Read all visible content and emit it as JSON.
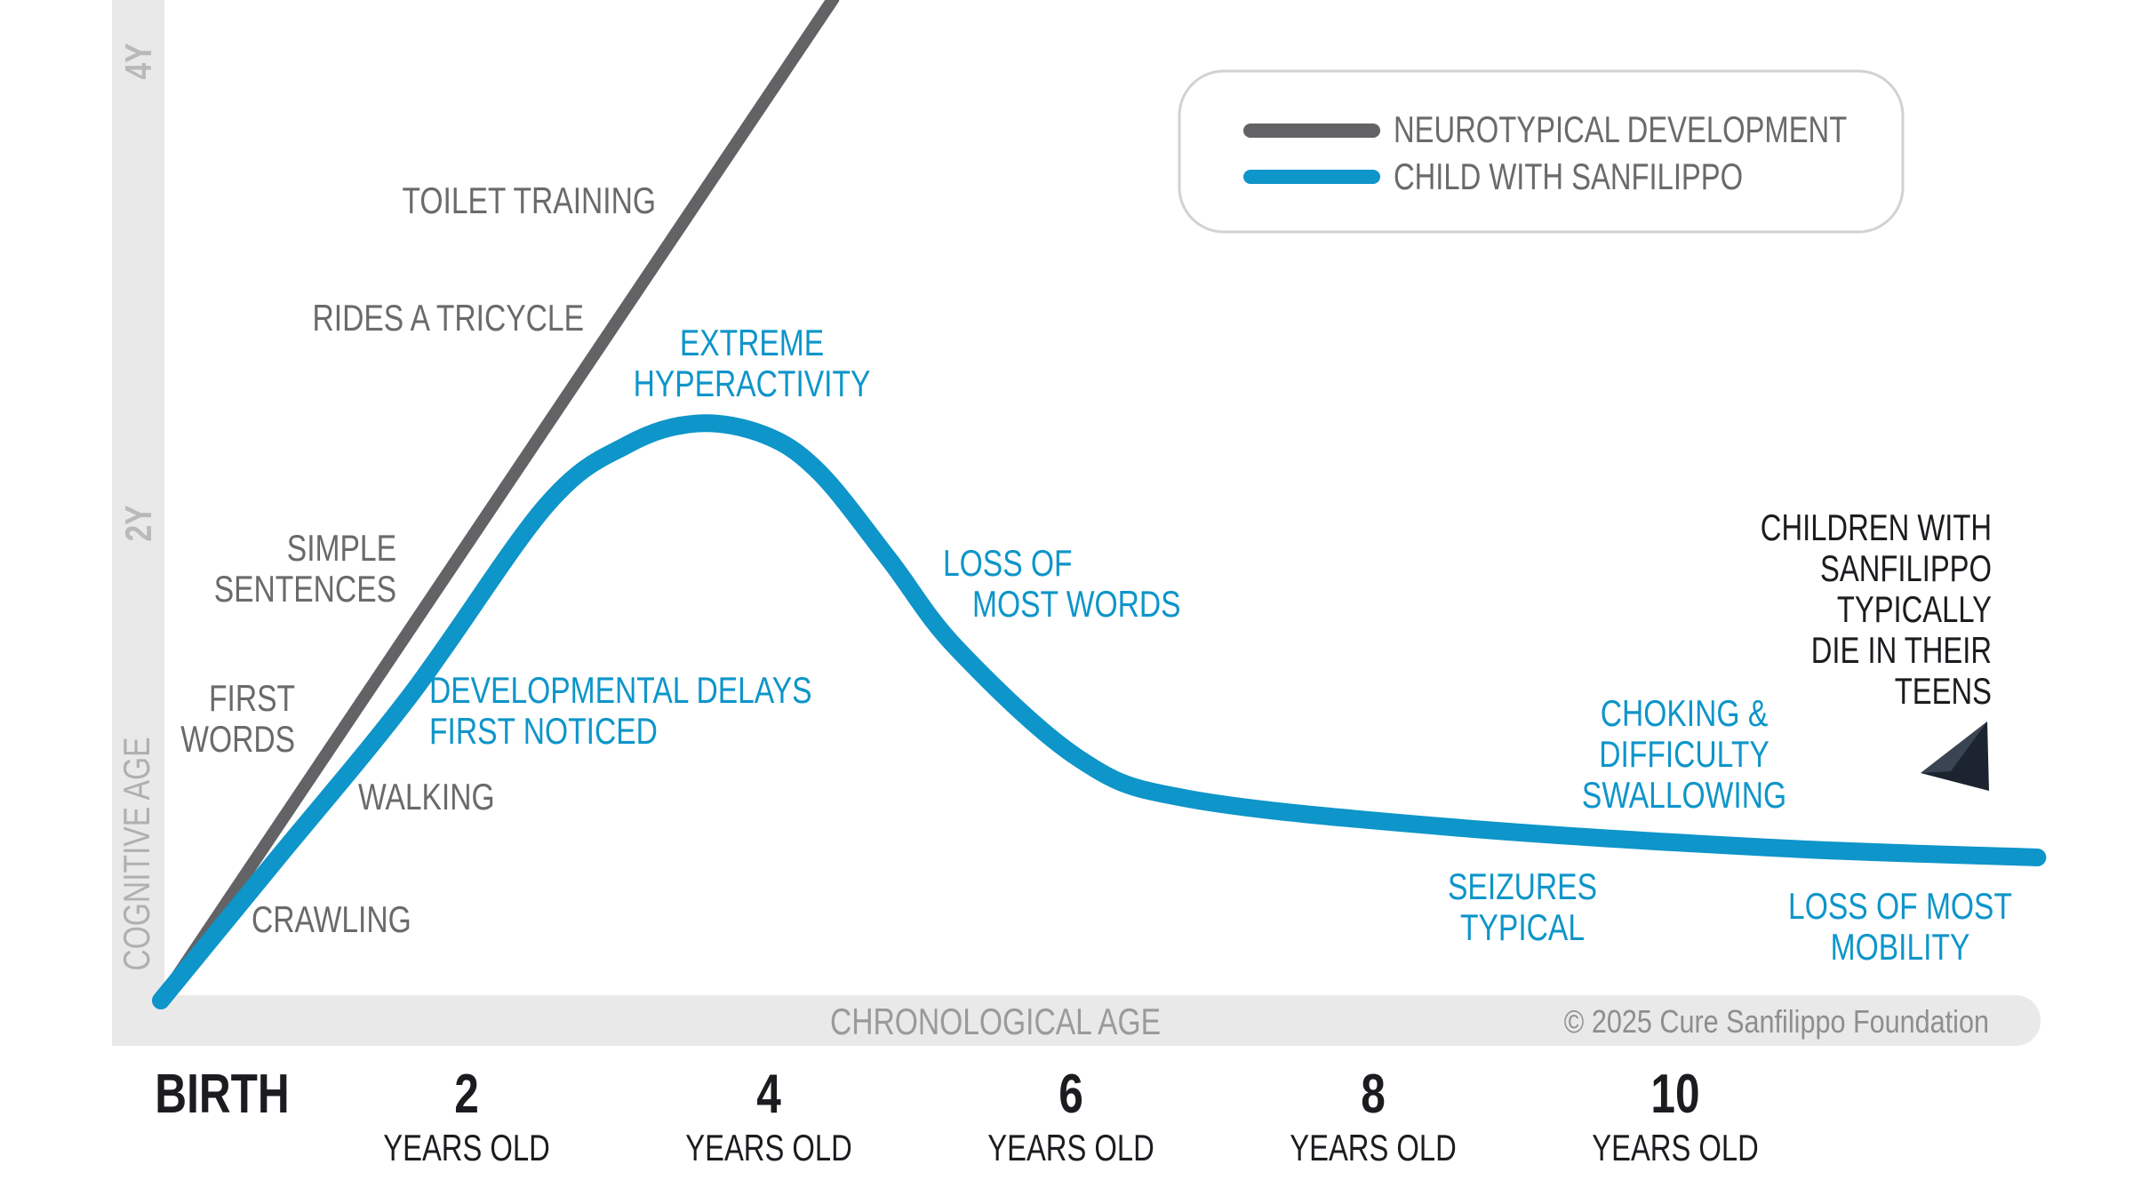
{
  "chart_data": {
    "type": "line",
    "xlabel": "CHRONOLOGICAL AGE",
    "ylabel": "COGNITIVE AGE",
    "xlim": [
      0,
      12.6
    ],
    "ylim": [
      0,
      4.27
    ],
    "x_ticks": [
      {
        "value": 0,
        "label": "BIRTH",
        "sub": ""
      },
      {
        "value": 2,
        "label": "2",
        "sub": "YEARS OLD"
      },
      {
        "value": 4,
        "label": "4",
        "sub": "YEARS OLD"
      },
      {
        "value": 6,
        "label": "6",
        "sub": "YEARS OLD"
      },
      {
        "value": 8,
        "label": "8",
        "sub": "YEARS OLD"
      },
      {
        "value": 10,
        "label": "10",
        "sub": "YEARS OLD"
      }
    ],
    "y_ticks": [
      {
        "value": 2,
        "label": "2Y"
      },
      {
        "value": 4,
        "label": "4Y"
      }
    ],
    "legend": {
      "position": "top-right",
      "entries": [
        "NEUROTYPICAL DEVELOPMENT",
        "CHILD WITH SANFILIPPO"
      ]
    },
    "series": [
      {
        "name": "NEUROTYPICAL DEVELOPMENT",
        "color": "#636366",
        "points": [
          [
            0,
            0
          ],
          [
            4.45,
            4.27
          ]
        ]
      },
      {
        "name": "CHILD WITH SANFILIPPO",
        "color": "#0e95c9",
        "points": [
          [
            0,
            0
          ],
          [
            0.75,
            0.59
          ],
          [
            1.65,
            1.3
          ],
          [
            2.55,
            2.11
          ],
          [
            3.09,
            2.37
          ],
          [
            3.55,
            2.46
          ],
          [
            4.0,
            2.41
          ],
          [
            4.36,
            2.25
          ],
          [
            4.82,
            1.88
          ],
          [
            5.27,
            1.5
          ],
          [
            6.08,
            1.03
          ],
          [
            6.8,
            0.86
          ],
          [
            8.52,
            0.74
          ],
          [
            10.7,
            0.65
          ],
          [
            12.42,
            0.61
          ]
        ]
      }
    ],
    "annotations": {
      "neurotypical": {
        "toilet": "TOILET TRAINING",
        "tricycle": "RIDES A TRICYCLE",
        "sentences": [
          "SIMPLE",
          "SENTENCES"
        ],
        "words": [
          "FIRST",
          "WORDS"
        ],
        "walking": "WALKING",
        "crawling": "CRAWLING"
      },
      "sanfilippo": {
        "hyper": [
          "EXTREME",
          "HYPERACTIVITY"
        ],
        "delays": [
          "DEVELOPMENTAL DELAYS",
          "FIRST NOTICED"
        ],
        "loss_words": [
          "LOSS OF",
          "MOST WORDS"
        ],
        "choking": [
          "CHOKING &",
          "DIFFICULTY",
          "SWALLOWING"
        ],
        "seizures": [
          "SEIZURES",
          "TYPICAL"
        ],
        "mobility": [
          "LOSS OF MOST",
          "MOBILITY"
        ]
      },
      "teens": [
        "CHILDREN WITH",
        "SANFILIPPO",
        "TYPICALLY",
        "DIE IN THEIR",
        "TEENS"
      ]
    },
    "copyright": "© 2025 Cure Sanfilippo Foundation"
  }
}
